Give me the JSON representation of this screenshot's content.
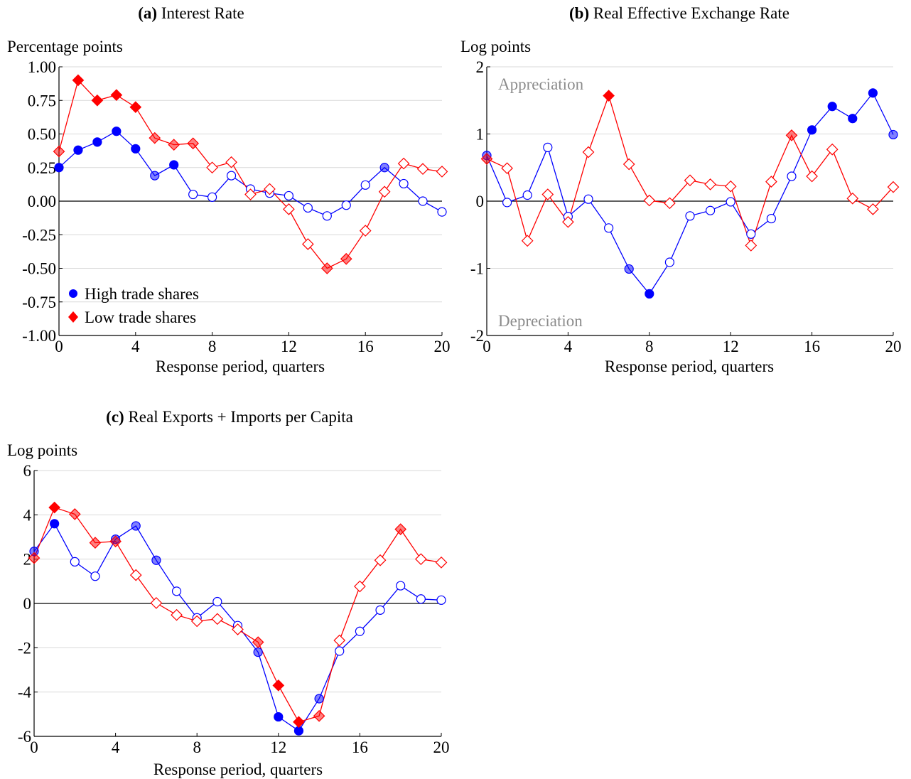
{
  "chart_data": [
    {
      "type": "line",
      "title_prefix": "(a)",
      "title": "Interest Rate",
      "ylabel": "Percentage points",
      "xlabel": "Response period, quarters",
      "xlim": [
        0,
        20
      ],
      "ylim": [
        -1.0,
        1.0
      ],
      "xticks": [
        0,
        4,
        8,
        12,
        16,
        20
      ],
      "yticks": [
        1.0,
        0.75,
        0.5,
        0.25,
        0.0,
        -0.25,
        -0.5,
        -0.75,
        -1.0
      ],
      "ytick_labels": [
        "1.00",
        "0.75",
        "0.50",
        "0.25",
        "0.00",
        "-0.25",
        "-0.50",
        "-0.75",
        "-1.00"
      ],
      "grid": true,
      "legend": {
        "position": "bottom-left",
        "entries": [
          {
            "label": "High trade shares",
            "color": "#0000ff",
            "marker": "circle"
          },
          {
            "label": "Low trade shares",
            "color": "#ff0000",
            "marker": "diamond"
          }
        ]
      },
      "annotations": [],
      "series": [
        {
          "name": "High trade shares",
          "color": "#0000ff",
          "marker": "circle",
          "x": [
            0,
            1,
            2,
            3,
            4,
            5,
            6,
            7,
            8,
            9,
            10,
            11,
            12,
            13,
            14,
            15,
            16,
            17,
            18,
            19,
            20
          ],
          "values": [
            0.25,
            0.38,
            0.44,
            0.52,
            0.39,
            0.19,
            0.27,
            0.05,
            0.03,
            0.19,
            0.09,
            0.06,
            0.04,
            -0.05,
            -0.11,
            -0.03,
            0.12,
            0.25,
            0.13,
            0.0,
            -0.08
          ],
          "significance": [
            2,
            2,
            2,
            2,
            2,
            1,
            2,
            0,
            0,
            0,
            0,
            0,
            0,
            0,
            0,
            0,
            0,
            1,
            0,
            0,
            0
          ]
        },
        {
          "name": "Low trade shares",
          "color": "#ff0000",
          "marker": "diamond",
          "x": [
            0,
            1,
            2,
            3,
            4,
            5,
            6,
            7,
            8,
            9,
            10,
            11,
            12,
            13,
            14,
            15,
            16,
            17,
            18,
            19,
            20
          ],
          "values": [
            0.37,
            0.9,
            0.75,
            0.79,
            0.7,
            0.47,
            0.42,
            0.43,
            0.25,
            0.29,
            0.05,
            0.09,
            -0.06,
            -0.32,
            -0.5,
            -0.43,
            -0.22,
            0.07,
            0.28,
            0.24,
            0.22
          ],
          "significance": [
            1,
            2,
            2,
            2,
            2,
            1,
            1,
            1,
            0,
            0,
            0,
            0,
            0,
            0,
            1,
            1,
            0,
            0,
            0,
            0,
            0
          ]
        }
      ]
    },
    {
      "type": "line",
      "title_prefix": "(b)",
      "title": "Real Effective Exchange Rate",
      "ylabel": "Log points",
      "xlabel": "Response period, quarters",
      "xlim": [
        0,
        20
      ],
      "ylim": [
        -2,
        2
      ],
      "xticks": [
        0,
        4,
        8,
        12,
        16,
        20
      ],
      "yticks": [
        2,
        1,
        0,
        -1,
        -2
      ],
      "ytick_labels": [
        "2",
        "1",
        "0",
        "-1",
        "-2"
      ],
      "grid": true,
      "annotations": [
        {
          "text": "Appreciation",
          "position": "top-left",
          "color": "#8c8c8c"
        },
        {
          "text": "Depreciation",
          "position": "bottom-left",
          "color": "#8c8c8c"
        }
      ],
      "series": [
        {
          "name": "High trade shares",
          "color": "#0000ff",
          "marker": "circle",
          "x": [
            0,
            1,
            2,
            3,
            4,
            5,
            6,
            7,
            8,
            9,
            10,
            11,
            12,
            13,
            14,
            15,
            16,
            17,
            18,
            19,
            20
          ],
          "values": [
            0.68,
            -0.02,
            0.09,
            0.8,
            -0.23,
            0.03,
            -0.4,
            -1.01,
            -1.38,
            -0.91,
            -0.22,
            -0.14,
            -0.01,
            -0.49,
            -0.26,
            0.37,
            1.06,
            1.41,
            1.23,
            1.61,
            0.99
          ],
          "significance": [
            1,
            0,
            0,
            0,
            0,
            0,
            0,
            1,
            2,
            0,
            0,
            0,
            0,
            0,
            0,
            0,
            2,
            2,
            2,
            2,
            1
          ]
        },
        {
          "name": "Low trade shares",
          "color": "#ff0000",
          "marker": "diamond",
          "x": [
            0,
            1,
            2,
            3,
            4,
            5,
            6,
            7,
            8,
            9,
            10,
            11,
            12,
            13,
            14,
            15,
            16,
            17,
            18,
            19,
            20
          ],
          "values": [
            0.63,
            0.49,
            -0.59,
            0.1,
            -0.31,
            0.73,
            1.57,
            0.55,
            0.01,
            -0.03,
            0.31,
            0.25,
            0.22,
            -0.66,
            0.29,
            0.98,
            0.37,
            0.77,
            0.04,
            -0.12,
            0.21
          ],
          "significance": [
            1,
            0,
            0,
            0,
            0,
            0,
            2,
            0,
            0,
            0,
            0,
            0,
            0,
            0,
            0,
            1,
            0,
            0,
            0,
            0,
            0
          ]
        }
      ]
    },
    {
      "type": "line",
      "title_prefix": "(c)",
      "title": "Real Exports + Imports per Capita",
      "ylabel": "Log points",
      "xlabel": "Response period, quarters",
      "xlim": [
        0,
        20
      ],
      "ylim": [
        -6,
        6
      ],
      "xticks": [
        0,
        4,
        8,
        12,
        16,
        20
      ],
      "yticks": [
        6,
        4,
        2,
        0,
        -2,
        -4,
        -6
      ],
      "ytick_labels": [
        "6",
        "4",
        "2",
        "0",
        "-2",
        "-4",
        "-6"
      ],
      "grid": true,
      "annotations": [],
      "series": [
        {
          "name": "High trade shares",
          "color": "#0000ff",
          "marker": "circle",
          "x": [
            0,
            1,
            2,
            3,
            4,
            5,
            6,
            7,
            8,
            9,
            10,
            11,
            12,
            13,
            14,
            15,
            16,
            17,
            18,
            19,
            20
          ],
          "values": [
            2.35,
            3.6,
            1.88,
            1.23,
            2.9,
            3.5,
            1.95,
            0.55,
            -0.65,
            0.08,
            -1.0,
            -2.2,
            -5.12,
            -5.75,
            -4.3,
            -2.15,
            -1.26,
            -0.3,
            0.8,
            0.2,
            0.15
          ],
          "significance": [
            1,
            2,
            0,
            0,
            1,
            1,
            1,
            0,
            0,
            0,
            0,
            1,
            2,
            2,
            1,
            0,
            0,
            0,
            0,
            0,
            0
          ]
        },
        {
          "name": "Low trade shares",
          "color": "#ff0000",
          "marker": "diamond",
          "x": [
            0,
            1,
            2,
            3,
            4,
            5,
            6,
            7,
            8,
            9,
            10,
            11,
            12,
            13,
            14,
            15,
            16,
            17,
            18,
            19,
            20
          ],
          "values": [
            2.05,
            4.33,
            4.03,
            2.74,
            2.8,
            1.28,
            0.02,
            -0.52,
            -0.8,
            -0.7,
            -1.17,
            -1.75,
            -3.7,
            -5.35,
            -5.08,
            -1.67,
            0.77,
            1.95,
            3.35,
            2.0,
            1.85
          ],
          "significance": [
            1,
            2,
            1,
            1,
            1,
            0,
            0,
            0,
            0,
            0,
            0,
            1,
            2,
            2,
            1,
            0,
            0,
            0,
            1,
            0,
            0
          ]
        }
      ]
    }
  ]
}
